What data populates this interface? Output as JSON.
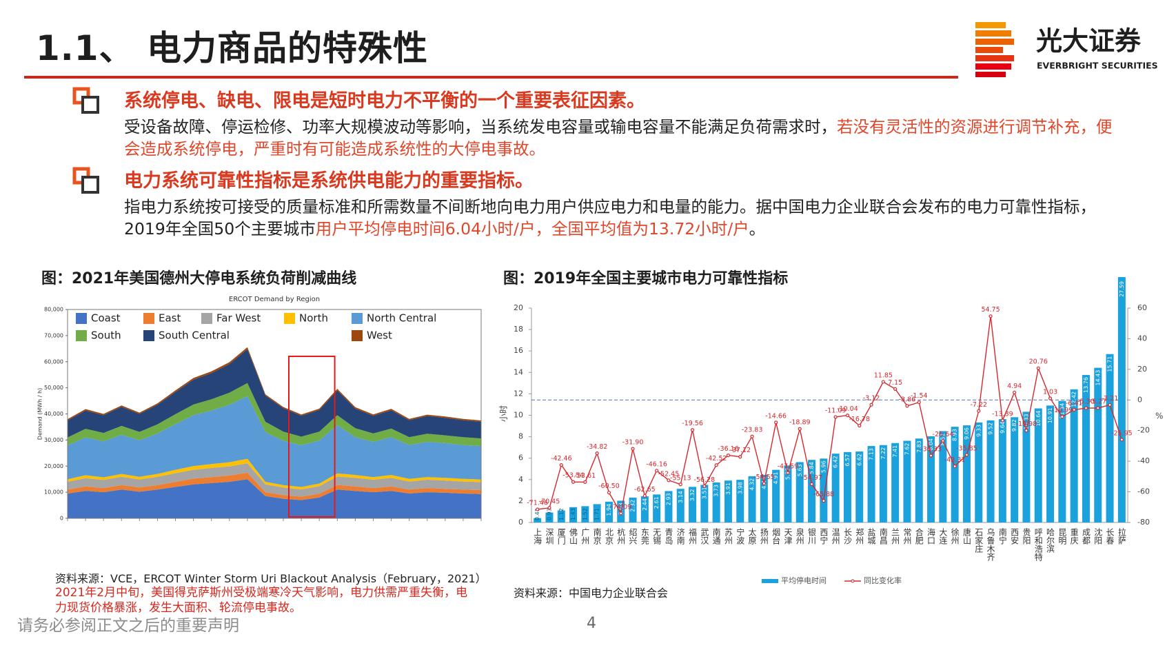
{
  "header": {
    "title": "1.1、 电力商品的特殊性",
    "brand": "光大证券",
    "brand_en": "EVERBRIGHT SECURITIES"
  },
  "bullets": [
    {
      "heading": "系统停电、缺电、限电是短时电力不平衡的一个重要表征因素。",
      "body": [
        {
          "text": "受设备故障、停运检修、功率大规模波动等影响，当系统发电容量或输电容量不能满足负荷需求时，",
          "emphasis": false
        },
        {
          "text": "若没有灵活性的资源进行调节补充，便会造成系统停电，严重时有可能造成系统性的大停电事故。",
          "emphasis": true
        }
      ]
    },
    {
      "heading": "电力系统可靠性指标是系统供电能力的重要指标。",
      "body": [
        {
          "text": "指电力系统按可接受的质量标准和所需数量不间断地向电力用户供应电力和电量的能力。据中国电力企业联合会发布的电力可靠性指标，2019年全国50个主要城市",
          "emphasis": false
        },
        {
          "text": "用户平均停电时间6.04小时/户，全国平均值为13.72小时/户",
          "emphasis": true
        },
        {
          "text": "。",
          "emphasis": false
        }
      ]
    }
  ],
  "chart_data": [
    {
      "type": "stacked_area",
      "caption": "图：2021年美国德州大停电系统负荷削减曲线",
      "title": "ERCOT Demand by Region",
      "y_label": "Demand (MWh / h)",
      "categories": [
        null,
        null,
        null,
        null,
        null,
        null,
        null,
        null,
        null,
        null,
        null,
        null,
        null,
        null,
        null,
        null,
        null,
        null,
        null,
        null,
        null,
        null,
        null,
        null
      ],
      "series": [
        {
          "name": "Coast",
          "color": "#4472c4",
          "values": [
            9500,
            10500,
            10000,
            11000,
            10200,
            11000,
            12000,
            13000,
            13500,
            14000,
            15000,
            8500,
            7500,
            7000,
            8000,
            11000,
            10500,
            10000,
            10500,
            9500,
            10000,
            9800,
            9500,
            9300
          ]
        },
        {
          "name": "East",
          "color": "#ed7d31",
          "values": [
            1500,
            1700,
            1600,
            1700,
            1600,
            1700,
            2000,
            2200,
            2300,
            2400,
            2500,
            1500,
            1400,
            1300,
            1400,
            1800,
            1700,
            1600,
            1700,
            1500,
            1600,
            1500,
            1500,
            1500
          ]
        },
        {
          "name": "Far West",
          "color": "#a5a5a5",
          "values": [
            3000,
            3200,
            3100,
            3200,
            3100,
            3200,
            3300,
            3400,
            3500,
            3500,
            3600,
            3000,
            2900,
            2800,
            2900,
            3200,
            3300,
            3200,
            3300,
            3100,
            3200,
            3200,
            3100,
            3100
          ]
        },
        {
          "name": "North",
          "color": "#ffc000",
          "values": [
            1000,
            1100,
            1000,
            1100,
            1000,
            1100,
            1300,
            1400,
            1500,
            1600,
            1700,
            1000,
            900,
            900,
            1000,
            1200,
            1100,
            1000,
            1100,
            1000,
            1000,
            1000,
            1000,
            1000
          ]
        },
        {
          "name": "North Central",
          "color": "#5b9bd5",
          "values": [
            13000,
            14500,
            13800,
            15000,
            14000,
            15500,
            17500,
            19500,
            20500,
            22000,
            24000,
            19000,
            17000,
            16000,
            16500,
            18500,
            14500,
            13500,
            14500,
            13000,
            13500,
            13300,
            13000,
            12800
          ]
        },
        {
          "name": "South",
          "color": "#70ad47",
          "values": [
            3000,
            3300,
            3200,
            3400,
            3200,
            3500,
            3800,
            4100,
            4300,
            4600,
            5000,
            4000,
            3500,
            3300,
            3400,
            3800,
            3400,
            3200,
            3300,
            3000,
            3100,
            3000,
            3000,
            2900
          ]
        },
        {
          "name": "South Central",
          "color": "#264478",
          "values": [
            6500,
            7000,
            6800,
            7300,
            6900,
            7500,
            8500,
            9500,
            10000,
            11000,
            13000,
            10000,
            9000,
            8000,
            8300,
            9500,
            7500,
            6800,
            7000,
            6500,
            6800,
            6700,
            6500,
            6400
          ]
        },
        {
          "name": "West",
          "color": "#9e480e",
          "values": [
            500,
            550,
            500,
            550,
            500,
            550,
            600,
            650,
            700,
            700,
            750,
            500,
            450,
            450,
            500,
            600,
            550,
            500,
            550,
            500,
            500,
            500,
            500,
            500
          ]
        }
      ],
      "ylim": [
        0,
        80000
      ],
      "yticks": [
        0,
        {
          "value": 10000,
          "label": "10,000"
        },
        {
          "value": 20000,
          "label": "20,000"
        },
        {
          "value": 30000,
          "label": "30,000"
        },
        {
          "value": 40000,
          "label": "40,000"
        },
        {
          "value": 50000,
          "label": "50,000"
        },
        {
          "value": 60000,
          "label": "60,000"
        },
        {
          "value": 70000,
          "label": "70,000"
        },
        {
          "value": 80000,
          "label": "80,000"
        }
      ],
      "legend": "top-left",
      "source": "资料来源：VCE，ERCOT Winter Storm Uri Blackout Analysis（February，2021）",
      "note": "2021年2月中旬，美国得克萨斯州受极端寒冷天气影响，电力供需严重失衡，电力现货价格暴涨，发生大面积、轮流停电事故。"
    },
    {
      "type": "bar_line",
      "caption": "图：2019年全国主要城市电力可靠性指标",
      "y_label": "小时",
      "y2_label": "%",
      "categories": [
        "上海",
        "深圳",
        "厦门",
        "佛山",
        "广州",
        "南京",
        "北京",
        "杭州",
        "绍兴",
        "东莞",
        "无锡",
        "青岛",
        "济南",
        "福州",
        "武汉",
        "南通",
        "苏州",
        "宁波",
        "太原",
        "扬州",
        "烟台",
        "天津",
        "泉州",
        "银川",
        "西宁",
        "温州",
        "长沙",
        "郑州",
        "盐城",
        "南昌",
        "兰州",
        "常州",
        "合肥",
        "海口",
        "大连",
        "徐州",
        "唐山",
        "石家庄",
        "乌鲁木齐",
        "南宁",
        "西安",
        "贵阳",
        "呼和浩特",
        "哈尔滨",
        "昆明",
        "重庆",
        "成都",
        "沈阳",
        "长春",
        "拉萨"
      ],
      "series": [
        {
          "name": "平均停电时间",
          "type": "bar",
          "color": "#1ba1dc",
          "values": [
            0.41,
            0.93,
            1.12,
            1.43,
            1.52,
            1.71,
            1.94,
            2.03,
            2.32,
            2.44,
            2.61,
            2.93,
            3.14,
            3.32,
            3.51,
            3.73,
            3.91,
            3.98,
            4.32,
            4.44,
            4.91,
            5.32,
            5.63,
            5.84,
            5.96,
            6.42,
            6.57,
            6.62,
            7.13,
            7.22,
            7.41,
            7.62,
            7.83,
            8.04,
            8.52,
            8.93,
            9.06,
            9.33,
            9.52,
            9.64,
            9.82,
            10.33,
            10.64,
            10.91,
            11.34,
            12.42,
            13.76,
            14.43,
            15.71,
            27.59
          ]
        },
        {
          "name": "同比变化率",
          "type": "line",
          "axis": "y2",
          "color": "#d7262c",
          "values": [
            -71.46,
            -70.45,
            -42.46,
            -53.54,
            -53.61,
            -34.82,
            -60.5,
            -74.09,
            -31.9,
            -62.65,
            -46.16,
            -52.45,
            -55.13,
            -19.56,
            -56.28,
            -42.52,
            -36.16,
            -37.12,
            -23.83,
            -54.55,
            -14.66,
            -47.59,
            -18.89,
            -54.97,
            -65.88,
            -11.09,
            -10.04,
            -16.78,
            -3.12,
            11.85,
            7.15,
            -3.86,
            -1.54,
            -36.33,
            -26.64,
            -43.31,
            -35.85,
            -7.22,
            54.75,
            -13.39,
            4.94,
            -19.98,
            20.76,
            1.03,
            -10.99,
            -6.41,
            -5.3,
            -5.27,
            -3.21,
            -25.95
          ],
          "value_labels": [
            "-71.46",
            "-70.45",
            "-42.46",
            "-53.54",
            "-53.61",
            "-34.82",
            "-60.50",
            "-74.09",
            "-31.90",
            "-62.65",
            "-46.16",
            "-52.45",
            "-55.13",
            "-19.56",
            "-56.28",
            "-42.52",
            "-36.16",
            "-37.12",
            "-23.83",
            "-54.55",
            "-14.66",
            "-47.59",
            "-18.89",
            "-54.97",
            "-65.88",
            "-11.09",
            "-10.04",
            "-16.78",
            "-3.12",
            "11.85",
            "7.15",
            "-3.86",
            "-1.54",
            "-36.33",
            "-26.64",
            "-43.31",
            "-35.85",
            "-7.22",
            "54.75",
            "-13.39",
            "4.94",
            "-19.98",
            "20.76",
            "1.03",
            "-10.99",
            "-6.41",
            "-5.30",
            "-5.27",
            "-3.21",
            "-25.95"
          ]
        }
      ],
      "ylim": [
        0,
        20
      ],
      "yticks": [
        0,
        2,
        4,
        6,
        8,
        10,
        12,
        14,
        16,
        18,
        20
      ],
      "y2lim": [
        -80,
        60
      ],
      "y2ticks": [
        -80,
        -60,
        -40,
        -20,
        0,
        20,
        40,
        60
      ],
      "reference_line": {
        "axis": "y2",
        "value": 0
      },
      "legend": "bottom",
      "source": "资料来源：中国电力企业联合会"
    }
  ],
  "footer": {
    "disclaimer": "请务必参阅正文之后的重要声明",
    "page": 4
  }
}
